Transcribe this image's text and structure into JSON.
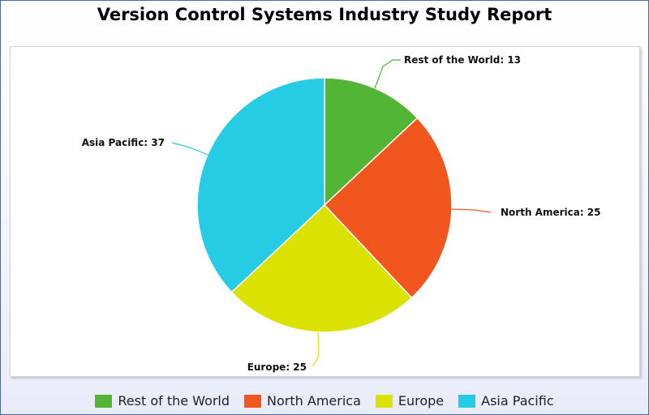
{
  "chart_data": {
    "type": "pie",
    "title": "Version Control Systems Industry Study Report",
    "slices": [
      {
        "label": "Rest of the World",
        "value": 13,
        "color": "#52b535"
      },
      {
        "label": "North America",
        "value": 25,
        "color": "#f0561d"
      },
      {
        "label": "Europe",
        "value": 25,
        "color": "#dbe100"
      },
      {
        "label": "Asia Pacific",
        "value": 37,
        "color": "#26cce4"
      }
    ],
    "data_labels": [
      "Rest of the World: 13",
      "North America: 25",
      "Europe: 25",
      "Asia Pacific: 37"
    ],
    "legend": {
      "position": "bottom",
      "items": [
        "Rest of the World",
        "North America",
        "Europe",
        "Asia Pacific"
      ]
    }
  }
}
